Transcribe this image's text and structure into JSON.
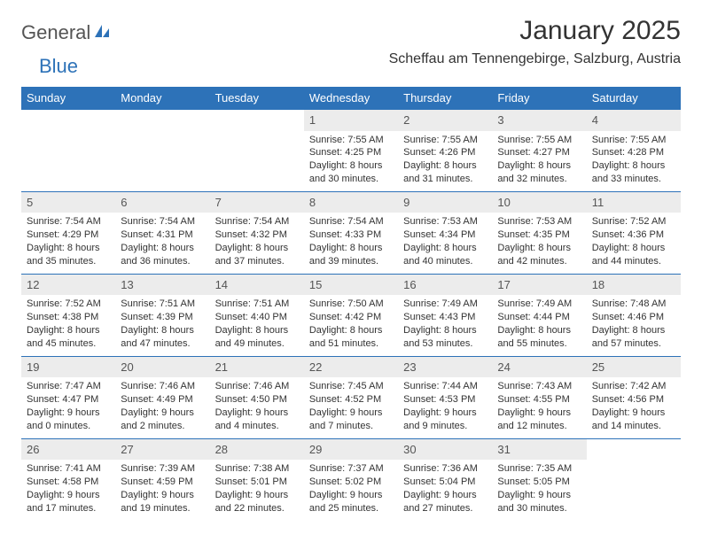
{
  "logo": {
    "text1": "General",
    "text2": "Blue"
  },
  "title": "January 2025",
  "location": "Scheffau am Tennengebirge, Salzburg, Austria",
  "colors": {
    "header_bg": "#2d72b8",
    "header_text": "#ffffff",
    "daynum_bg": "#ececec",
    "border": "#2d72b8",
    "text": "#333333"
  },
  "weekdays": [
    "Sunday",
    "Monday",
    "Tuesday",
    "Wednesday",
    "Thursday",
    "Friday",
    "Saturday"
  ],
  "weeks": [
    [
      null,
      null,
      null,
      {
        "n": "1",
        "sunrise": "7:55 AM",
        "sunset": "4:25 PM",
        "dl1": "Daylight: 8 hours",
        "dl2": "and 30 minutes."
      },
      {
        "n": "2",
        "sunrise": "7:55 AM",
        "sunset": "4:26 PM",
        "dl1": "Daylight: 8 hours",
        "dl2": "and 31 minutes."
      },
      {
        "n": "3",
        "sunrise": "7:55 AM",
        "sunset": "4:27 PM",
        "dl1": "Daylight: 8 hours",
        "dl2": "and 32 minutes."
      },
      {
        "n": "4",
        "sunrise": "7:55 AM",
        "sunset": "4:28 PM",
        "dl1": "Daylight: 8 hours",
        "dl2": "and 33 minutes."
      }
    ],
    [
      {
        "n": "5",
        "sunrise": "7:54 AM",
        "sunset": "4:29 PM",
        "dl1": "Daylight: 8 hours",
        "dl2": "and 35 minutes."
      },
      {
        "n": "6",
        "sunrise": "7:54 AM",
        "sunset": "4:31 PM",
        "dl1": "Daylight: 8 hours",
        "dl2": "and 36 minutes."
      },
      {
        "n": "7",
        "sunrise": "7:54 AM",
        "sunset": "4:32 PM",
        "dl1": "Daylight: 8 hours",
        "dl2": "and 37 minutes."
      },
      {
        "n": "8",
        "sunrise": "7:54 AM",
        "sunset": "4:33 PM",
        "dl1": "Daylight: 8 hours",
        "dl2": "and 39 minutes."
      },
      {
        "n": "9",
        "sunrise": "7:53 AM",
        "sunset": "4:34 PM",
        "dl1": "Daylight: 8 hours",
        "dl2": "and 40 minutes."
      },
      {
        "n": "10",
        "sunrise": "7:53 AM",
        "sunset": "4:35 PM",
        "dl1": "Daylight: 8 hours",
        "dl2": "and 42 minutes."
      },
      {
        "n": "11",
        "sunrise": "7:52 AM",
        "sunset": "4:36 PM",
        "dl1": "Daylight: 8 hours",
        "dl2": "and 44 minutes."
      }
    ],
    [
      {
        "n": "12",
        "sunrise": "7:52 AM",
        "sunset": "4:38 PM",
        "dl1": "Daylight: 8 hours",
        "dl2": "and 45 minutes."
      },
      {
        "n": "13",
        "sunrise": "7:51 AM",
        "sunset": "4:39 PM",
        "dl1": "Daylight: 8 hours",
        "dl2": "and 47 minutes."
      },
      {
        "n": "14",
        "sunrise": "7:51 AM",
        "sunset": "4:40 PM",
        "dl1": "Daylight: 8 hours",
        "dl2": "and 49 minutes."
      },
      {
        "n": "15",
        "sunrise": "7:50 AM",
        "sunset": "4:42 PM",
        "dl1": "Daylight: 8 hours",
        "dl2": "and 51 minutes."
      },
      {
        "n": "16",
        "sunrise": "7:49 AM",
        "sunset": "4:43 PM",
        "dl1": "Daylight: 8 hours",
        "dl2": "and 53 minutes."
      },
      {
        "n": "17",
        "sunrise": "7:49 AM",
        "sunset": "4:44 PM",
        "dl1": "Daylight: 8 hours",
        "dl2": "and 55 minutes."
      },
      {
        "n": "18",
        "sunrise": "7:48 AM",
        "sunset": "4:46 PM",
        "dl1": "Daylight: 8 hours",
        "dl2": "and 57 minutes."
      }
    ],
    [
      {
        "n": "19",
        "sunrise": "7:47 AM",
        "sunset": "4:47 PM",
        "dl1": "Daylight: 9 hours",
        "dl2": "and 0 minutes."
      },
      {
        "n": "20",
        "sunrise": "7:46 AM",
        "sunset": "4:49 PM",
        "dl1": "Daylight: 9 hours",
        "dl2": "and 2 minutes."
      },
      {
        "n": "21",
        "sunrise": "7:46 AM",
        "sunset": "4:50 PM",
        "dl1": "Daylight: 9 hours",
        "dl2": "and 4 minutes."
      },
      {
        "n": "22",
        "sunrise": "7:45 AM",
        "sunset": "4:52 PM",
        "dl1": "Daylight: 9 hours",
        "dl2": "and 7 minutes."
      },
      {
        "n": "23",
        "sunrise": "7:44 AM",
        "sunset": "4:53 PM",
        "dl1": "Daylight: 9 hours",
        "dl2": "and 9 minutes."
      },
      {
        "n": "24",
        "sunrise": "7:43 AM",
        "sunset": "4:55 PM",
        "dl1": "Daylight: 9 hours",
        "dl2": "and 12 minutes."
      },
      {
        "n": "25",
        "sunrise": "7:42 AM",
        "sunset": "4:56 PM",
        "dl1": "Daylight: 9 hours",
        "dl2": "and 14 minutes."
      }
    ],
    [
      {
        "n": "26",
        "sunrise": "7:41 AM",
        "sunset": "4:58 PM",
        "dl1": "Daylight: 9 hours",
        "dl2": "and 17 minutes."
      },
      {
        "n": "27",
        "sunrise": "7:39 AM",
        "sunset": "4:59 PM",
        "dl1": "Daylight: 9 hours",
        "dl2": "and 19 minutes."
      },
      {
        "n": "28",
        "sunrise": "7:38 AM",
        "sunset": "5:01 PM",
        "dl1": "Daylight: 9 hours",
        "dl2": "and 22 minutes."
      },
      {
        "n": "29",
        "sunrise": "7:37 AM",
        "sunset": "5:02 PM",
        "dl1": "Daylight: 9 hours",
        "dl2": "and 25 minutes."
      },
      {
        "n": "30",
        "sunrise": "7:36 AM",
        "sunset": "5:04 PM",
        "dl1": "Daylight: 9 hours",
        "dl2": "and 27 minutes."
      },
      {
        "n": "31",
        "sunrise": "7:35 AM",
        "sunset": "5:05 PM",
        "dl1": "Daylight: 9 hours",
        "dl2": "and 30 minutes."
      },
      null
    ]
  ],
  "labels": {
    "sunrise": "Sunrise: ",
    "sunset": "Sunset: "
  }
}
